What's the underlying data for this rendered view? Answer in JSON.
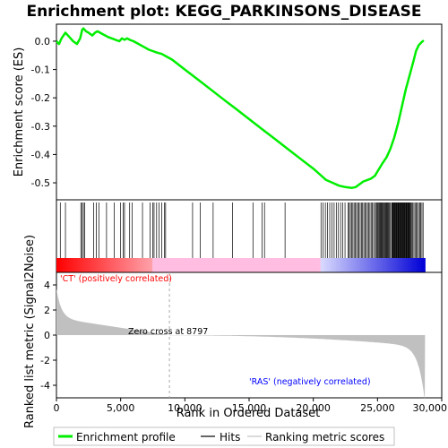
{
  "chart_data": {
    "type": "line",
    "title": "Enrichment plot: KEGG_PARKINSONS_DISEASE",
    "xlabel": "Rank in Ordered Dataset",
    "ylabel_top": "Enrichment score (ES)",
    "ylabel_bottom": "Ranked list metric (Signal2Noise)",
    "xlim": [
      0,
      30000
    ],
    "ylim_top": [
      -0.56,
      0.06
    ],
    "ylim_bottom": [
      -5,
      5
    ],
    "x_ticks": [
      0,
      5000,
      10000,
      15000,
      20000,
      25000,
      30000
    ],
    "x_tick_labels": [
      "0",
      "5,000",
      "10,000",
      "15,000",
      "20,000",
      "25,000",
      "30,000"
    ],
    "y_ticks_top": [
      0.0,
      -0.1,
      -0.2,
      -0.3,
      -0.4,
      -0.5
    ],
    "y_tick_labels_top": [
      "0.0",
      "-0.1",
      "-0.2",
      "-0.3",
      "-0.4",
      "-0.5"
    ],
    "y_ticks_bottom": [
      4,
      2,
      0,
      -2,
      -4
    ],
    "y_tick_labels_bottom": [
      "4",
      "2",
      "0",
      "-2",
      "-4"
    ],
    "dataset_size": 28700,
    "zero_cross": 8797,
    "zero_cross_label": "Zero cross at 8797",
    "pos_label": "'CT' (positively correlated)",
    "neg_label": "'RAS' (negatively correlated)",
    "colors": {
      "es_line": "#00ee00",
      "pos_text": "#ff0000",
      "neg_text": "#0000ff",
      "metric_fill": "#c0c0c0",
      "hit": "#000000"
    },
    "series": [
      {
        "name": "Enrichment profile",
        "x": [
          0,
          200,
          400,
          700,
          1000,
          1300,
          1600,
          1850,
          2000,
          2100,
          2300,
          2500,
          2800,
          3000,
          3200,
          3400,
          3600,
          3800,
          4000,
          4300,
          4600,
          4900,
          5100,
          5300,
          5500,
          5700,
          6000,
          6400,
          6800,
          7200,
          7500,
          7800,
          8200,
          8600,
          9000,
          10000,
          11000,
          12000,
          13000,
          14000,
          15000,
          16000,
          17000,
          18000,
          19000,
          20000,
          20500,
          21000,
          21500,
          22000,
          22500,
          23000,
          23300,
          23600,
          23900,
          24200,
          24500,
          24800,
          25000,
          25200,
          25400,
          25700,
          26000,
          26300,
          26600,
          26900,
          27200,
          27500,
          27800,
          28000,
          28200,
          28400,
          28600
        ],
        "y": [
          0.0,
          -0.01,
          0.01,
          0.03,
          0.015,
          0.0,
          -0.01,
          0.01,
          0.04,
          0.045,
          0.035,
          0.03,
          0.02,
          0.03,
          0.035,
          0.03,
          0.025,
          0.02,
          0.015,
          0.01,
          0.005,
          0.0,
          0.01,
          0.005,
          0.01,
          0.005,
          0.0,
          -0.01,
          -0.02,
          -0.03,
          -0.035,
          -0.04,
          -0.045,
          -0.055,
          -0.065,
          -0.1,
          -0.135,
          -0.17,
          -0.205,
          -0.24,
          -0.275,
          -0.31,
          -0.345,
          -0.38,
          -0.415,
          -0.45,
          -0.47,
          -0.49,
          -0.5,
          -0.51,
          -0.515,
          -0.518,
          -0.515,
          -0.505,
          -0.495,
          -0.49,
          -0.485,
          -0.475,
          -0.46,
          -0.445,
          -0.43,
          -0.41,
          -0.38,
          -0.34,
          -0.29,
          -0.23,
          -0.17,
          -0.12,
          -0.07,
          -0.035,
          -0.015,
          -0.005,
          0.003
        ]
      }
    ],
    "legend": [
      "Enrichment profile",
      "Hits",
      "Ranking metric scores"
    ],
    "legend_placement": "bottom"
  }
}
